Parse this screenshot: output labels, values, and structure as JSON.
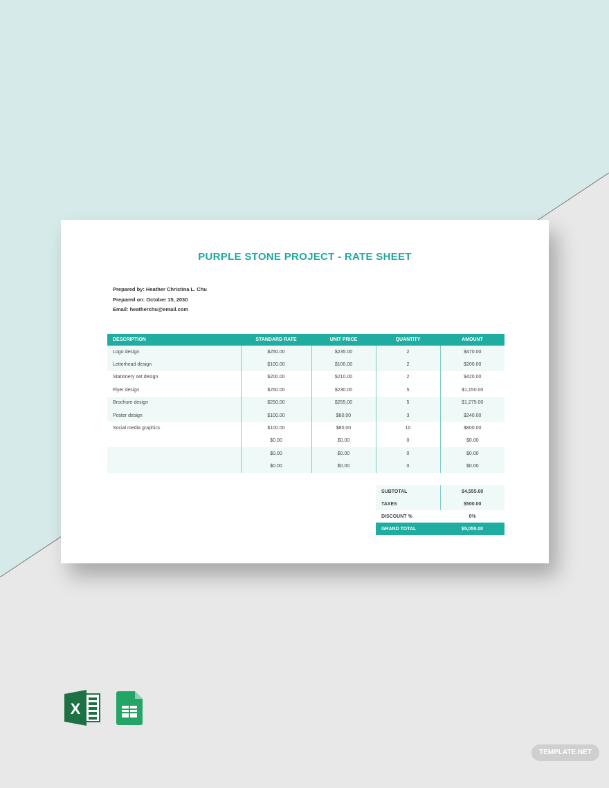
{
  "colors": {
    "accent": "#20ada1",
    "background_top": "#d6eae9",
    "background_bottom": "#e8e8e8"
  },
  "document": {
    "title": "PURPLE STONE PROJECT - RATE SHEET",
    "prepared_by": "Prepared by: Heather Christina L. Chu",
    "prepared_on": "Prepared on: October 15, 2030",
    "email": "Email: heatherchu@email.com",
    "columns": [
      "DESCRIPTION",
      "STANDARD RATE",
      "UNIT PRICE",
      "QUANTITY",
      "AMOUNT"
    ],
    "rows": [
      [
        "Logo design",
        "$250.00",
        "$235.00",
        "2",
        "$470.00"
      ],
      [
        "Letterhead design",
        "$100.00",
        "$100.00",
        "2",
        "$200.00"
      ],
      [
        "Stationery set design",
        "$200.00",
        "$210.00",
        "2",
        "$420.00"
      ],
      [
        "Flyer design",
        "$250.00",
        "$230.00",
        "5",
        "$1,150.00"
      ],
      [
        "Brochure design",
        "$250.00",
        "$255.00",
        "5",
        "$1,275.00"
      ],
      [
        "Poster design",
        "$100.00",
        "$80.00",
        "3",
        "$240.00"
      ],
      [
        "Social media graphics",
        "$100.00",
        "$80.00",
        "10",
        "$800.00"
      ],
      [
        "",
        "$0.00",
        "$0.00",
        "0",
        "$0.00"
      ],
      [
        "",
        "$0.00",
        "$0.00",
        "0",
        "$0.00"
      ],
      [
        "",
        "$0.00",
        "$0.00",
        "0",
        "$0.00"
      ]
    ],
    "totals": [
      {
        "label": "SUBTOTAL",
        "value": "$4,555.00"
      },
      {
        "label": "TAXES",
        "value": "$500.00"
      },
      {
        "label": "DISCOUNT %",
        "value": "0%"
      },
      {
        "label": "GRAND TOTAL",
        "value": "$5,055.00"
      }
    ]
  },
  "icons": [
    "excel-icon",
    "google-sheets-icon"
  ],
  "watermark": "TEMPLATE.NET"
}
